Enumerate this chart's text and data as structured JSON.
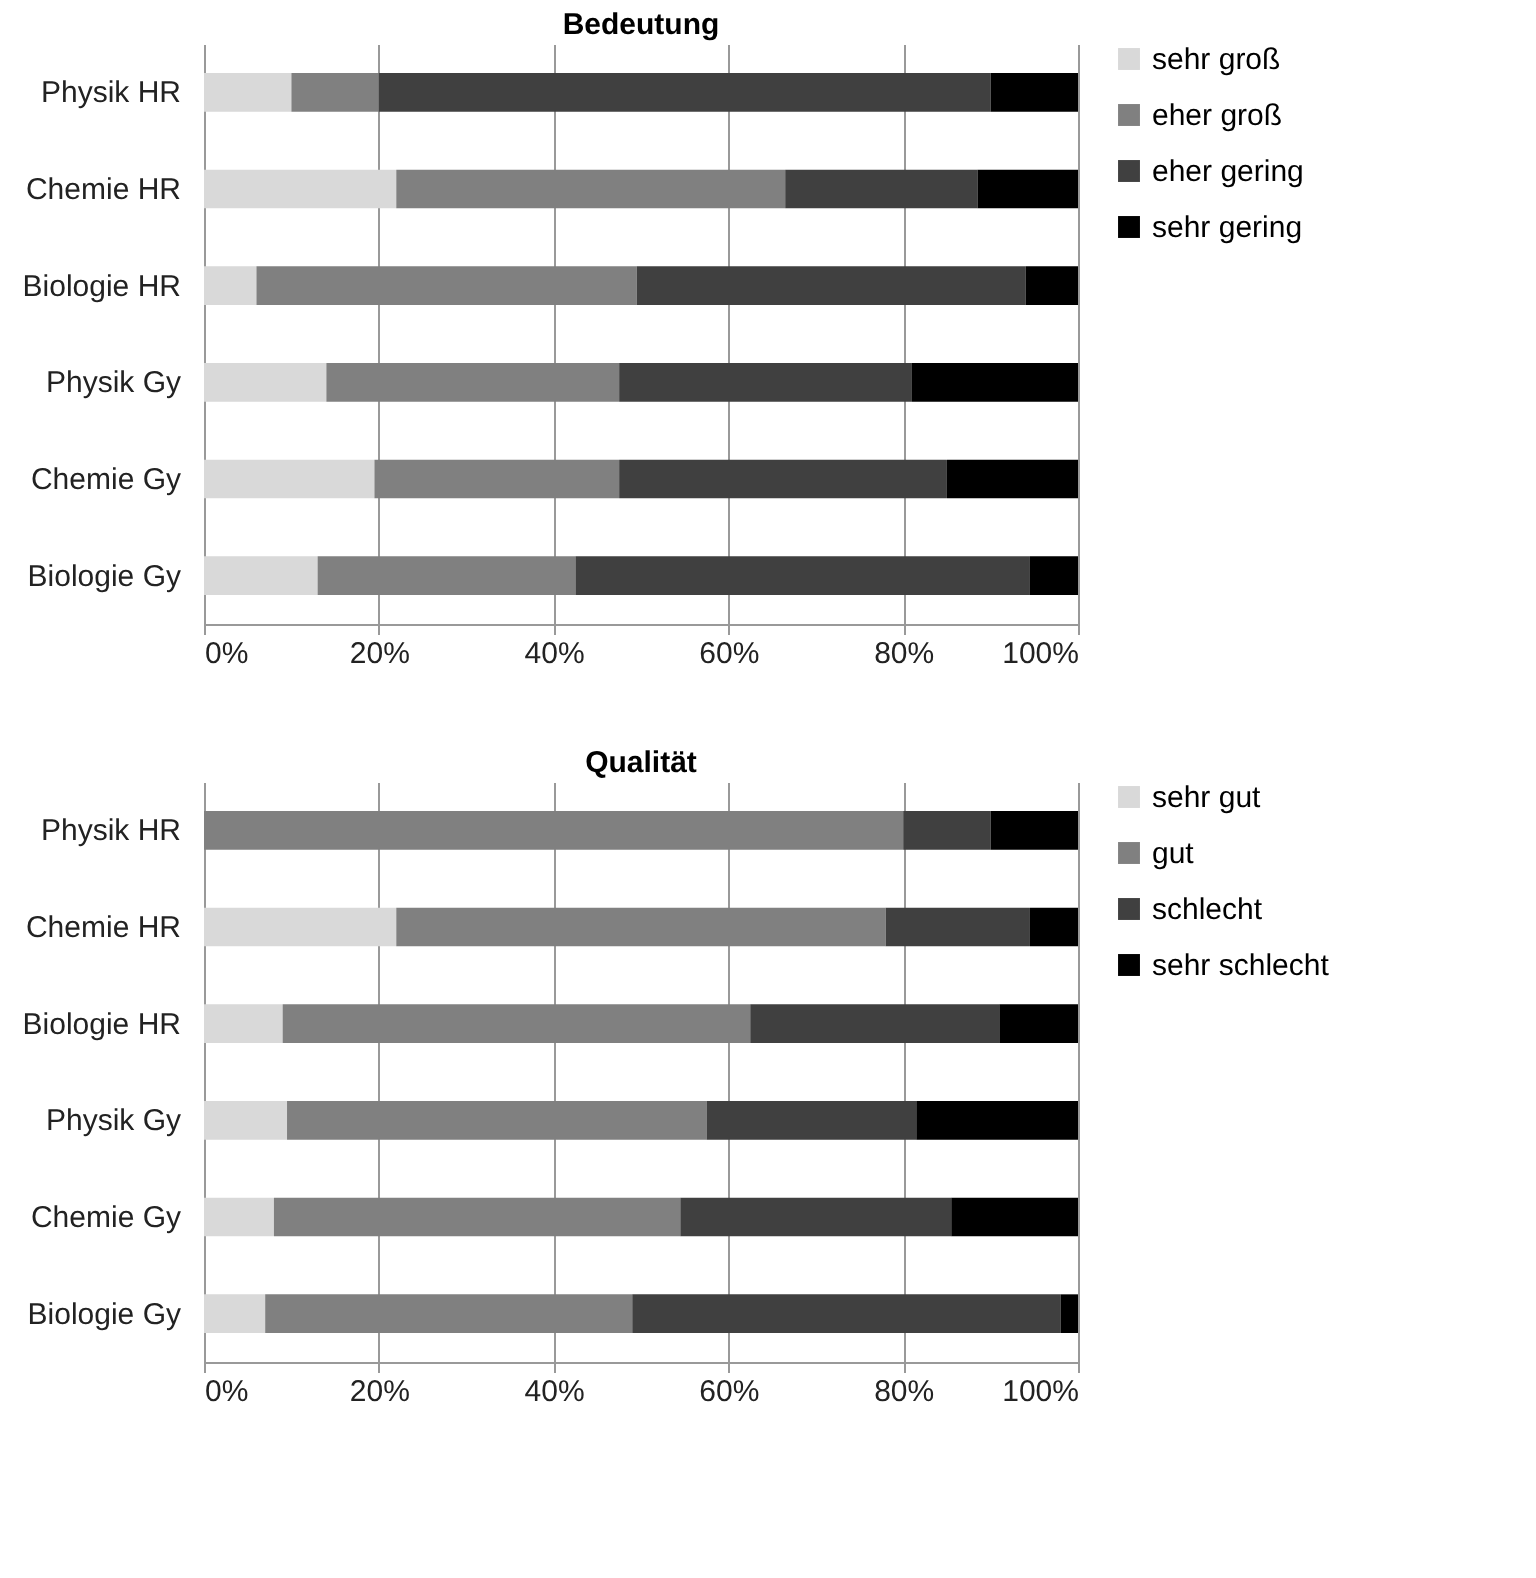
{
  "chart_data": [
    {
      "type": "bar",
      "title": "Bedeutung",
      "orientation": "horizontal",
      "stacked": true,
      "categories": [
        "Physik HR",
        "Chemie HR",
        "Biologie HR",
        "Physik Gy",
        "Chemie Gy",
        "Biologie Gy"
      ],
      "series": [
        {
          "name": "sehr groß",
          "color": "#d9d9d9",
          "values": [
            10,
            22,
            6,
            14,
            19.5,
            13
          ]
        },
        {
          "name": "eher groß",
          "color": "#808080",
          "values": [
            10,
            44.5,
            43.5,
            33.5,
            28,
            29.5
          ]
        },
        {
          "name": "eher gering",
          "color": "#404040",
          "values": [
            70,
            22,
            44.5,
            33.5,
            37.5,
            52
          ]
        },
        {
          "name": "sehr gering",
          "color": "#000000",
          "values": [
            10,
            11.5,
            6,
            19,
            15,
            5.5
          ]
        }
      ],
      "xlim": [
        0,
        100
      ],
      "xticks": [
        {
          "value": 0,
          "label": "0%"
        },
        {
          "value": 20,
          "label": "20%"
        },
        {
          "value": 40,
          "label": "40%"
        },
        {
          "value": 60,
          "label": "60%"
        },
        {
          "value": 80,
          "label": "80%"
        },
        {
          "value": 100,
          "label": "100%"
        }
      ],
      "grid": "x",
      "legend": "right"
    },
    {
      "type": "bar",
      "title": "Qualität",
      "orientation": "horizontal",
      "stacked": true,
      "categories": [
        "Physik HR",
        "Chemie HR",
        "Biologie HR",
        "Physik Gy",
        "Chemie Gy",
        "Biologie Gy"
      ],
      "series": [
        {
          "name": "sehr gut",
          "color": "#d9d9d9",
          "values": [
            0,
            22,
            9,
            9.5,
            8,
            7
          ]
        },
        {
          "name": " gut",
          "color": "#808080",
          "values": [
            80,
            56,
            53.5,
            48,
            46.5,
            42
          ]
        },
        {
          "name": "schlecht",
          "color": "#404040",
          "values": [
            10,
            16.5,
            28.5,
            24,
            31,
            49
          ]
        },
        {
          "name": "sehr schlecht",
          "color": "#000000",
          "values": [
            10,
            5.5,
            9,
            18.5,
            14.5,
            2
          ]
        }
      ],
      "xlim": [
        0,
        100
      ],
      "xticks": [
        {
          "value": 0,
          "label": "0%"
        },
        {
          "value": 20,
          "label": "20%"
        },
        {
          "value": 40,
          "label": "40%"
        },
        {
          "value": 60,
          "label": "60%"
        },
        {
          "value": 80,
          "label": "80%"
        },
        {
          "value": 100,
          "label": "100%"
        }
      ],
      "grid": "x",
      "legend": "right"
    }
  ]
}
